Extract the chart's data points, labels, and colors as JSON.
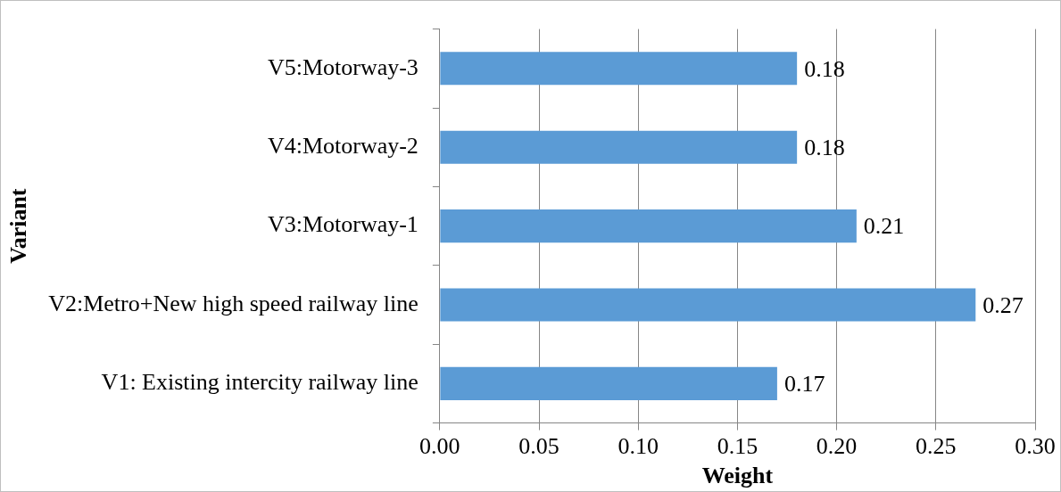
{
  "chart_data": {
    "type": "bar",
    "orientation": "horizontal",
    "xlabel": "Weight",
    "ylabel": "Variant",
    "categories": [
      "V5:Motorway-3",
      "V4:Motorway-2",
      "V3:Motorway-1",
      "V2:Metro+New high speed railway line",
      "V1: Existing intercity railway line"
    ],
    "values": [
      0.18,
      0.18,
      0.21,
      0.27,
      0.17
    ],
    "color": "#5b9bd5",
    "xlim": [
      0,
      0.3
    ],
    "xticks": [
      {
        "value": 0,
        "label": "0.00"
      },
      {
        "value": 0.05,
        "label": "0.05"
      },
      {
        "value": 0.1,
        "label": "0.10"
      },
      {
        "value": 0.15,
        "label": "0.15"
      },
      {
        "value": 0.2,
        "label": "0.20"
      },
      {
        "value": 0.25,
        "label": "0.25"
      },
      {
        "value": 0.3,
        "label": "0.30"
      }
    ],
    "grid": "x",
    "data_labels": true
  }
}
